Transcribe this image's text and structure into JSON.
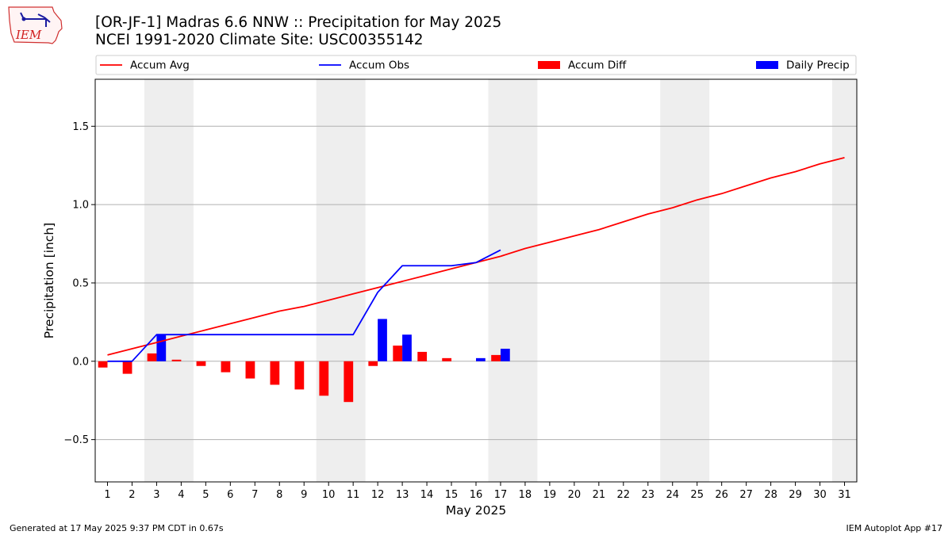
{
  "logo": {
    "text": "IEM"
  },
  "title": {
    "line1": "[OR-JF-1] Madras 6.6 NNW :: Precipitation for May 2025",
    "line2": "NCEI 1991-2020 Climate Site: USC00355142"
  },
  "footer": {
    "left": "Generated at 17 May 2025 9:37 PM CDT in 0.67s",
    "right": "IEM Autoplot App #17"
  },
  "colors": {
    "accum_avg": "#ff0000",
    "accum_obs": "#0000ff",
    "accum_diff": "#ff0000",
    "daily_precip": "#0000ff",
    "weekend_shade": "#eeeeee",
    "grid": "#b0b0b0"
  },
  "chart_data": {
    "type": "bar",
    "xlabel": "May 2025",
    "ylabel": "Precipitation [inch]",
    "ylim": [
      -0.77,
      1.8
    ],
    "xlim": [
      0.5,
      31.5
    ],
    "yticks": [
      -0.5,
      0.0,
      0.5,
      1.0,
      1.5
    ],
    "ytick_labels": [
      "−0.5",
      "0.0",
      "0.5",
      "1.0",
      "1.5"
    ],
    "xticks": [
      "1",
      "2",
      "3",
      "4",
      "5",
      "6",
      "7",
      "8",
      "9",
      "10",
      "11",
      "12",
      "13",
      "14",
      "15",
      "16",
      "17",
      "18",
      "19",
      "20",
      "21",
      "22",
      "23",
      "24",
      "25",
      "26",
      "27",
      "28",
      "29",
      "30",
      "31"
    ],
    "grid": "horizontal",
    "legend_position": "top",
    "weekend_spans": [
      [
        3,
        4
      ],
      [
        10,
        11
      ],
      [
        17,
        18
      ],
      [
        24,
        25
      ],
      [
        31,
        31
      ]
    ],
    "series": [
      {
        "name": "Accum Avg",
        "kind": "line",
        "x": [
          1,
          2,
          3,
          4,
          5,
          6,
          7,
          8,
          9,
          10,
          11,
          12,
          13,
          14,
          15,
          16,
          17,
          18,
          19,
          20,
          21,
          22,
          23,
          24,
          25,
          26,
          27,
          28,
          29,
          30,
          31
        ],
        "values": [
          0.04,
          0.08,
          0.12,
          0.16,
          0.2,
          0.24,
          0.28,
          0.32,
          0.35,
          0.39,
          0.43,
          0.47,
          0.51,
          0.55,
          0.59,
          0.63,
          0.67,
          0.72,
          0.76,
          0.8,
          0.84,
          0.89,
          0.94,
          0.98,
          1.03,
          1.07,
          1.12,
          1.17,
          1.21,
          1.26,
          1.3
        ]
      },
      {
        "name": "Accum Obs",
        "kind": "line",
        "x": [
          1,
          2,
          3,
          4,
          5,
          6,
          7,
          8,
          9,
          10,
          11,
          12,
          13,
          14,
          15,
          16,
          17
        ],
        "values": [
          0.0,
          0.0,
          0.17,
          0.17,
          0.17,
          0.17,
          0.17,
          0.17,
          0.17,
          0.17,
          0.17,
          0.44,
          0.61,
          0.61,
          0.61,
          0.63,
          0.71
        ]
      },
      {
        "name": "Accum Diff",
        "kind": "bar",
        "offset": "left",
        "x": [
          1,
          2,
          3,
          4,
          5,
          6,
          7,
          8,
          9,
          10,
          11,
          12,
          13,
          14,
          15,
          16,
          17
        ],
        "values": [
          -0.04,
          -0.08,
          0.05,
          0.01,
          -0.03,
          -0.07,
          -0.11,
          -0.15,
          -0.18,
          -0.22,
          -0.26,
          -0.03,
          0.1,
          0.06,
          0.02,
          0.0,
          0.04
        ]
      },
      {
        "name": "Daily Precip",
        "kind": "bar",
        "offset": "right",
        "x": [
          1,
          2,
          3,
          4,
          5,
          6,
          7,
          8,
          9,
          10,
          11,
          12,
          13,
          14,
          15,
          16,
          17
        ],
        "values": [
          0.0,
          0.0,
          0.17,
          0.0,
          0.0,
          0.0,
          0.0,
          0.0,
          0.0,
          0.0,
          0.0,
          0.27,
          0.17,
          0.0,
          0.0,
          0.02,
          0.08
        ]
      }
    ]
  }
}
